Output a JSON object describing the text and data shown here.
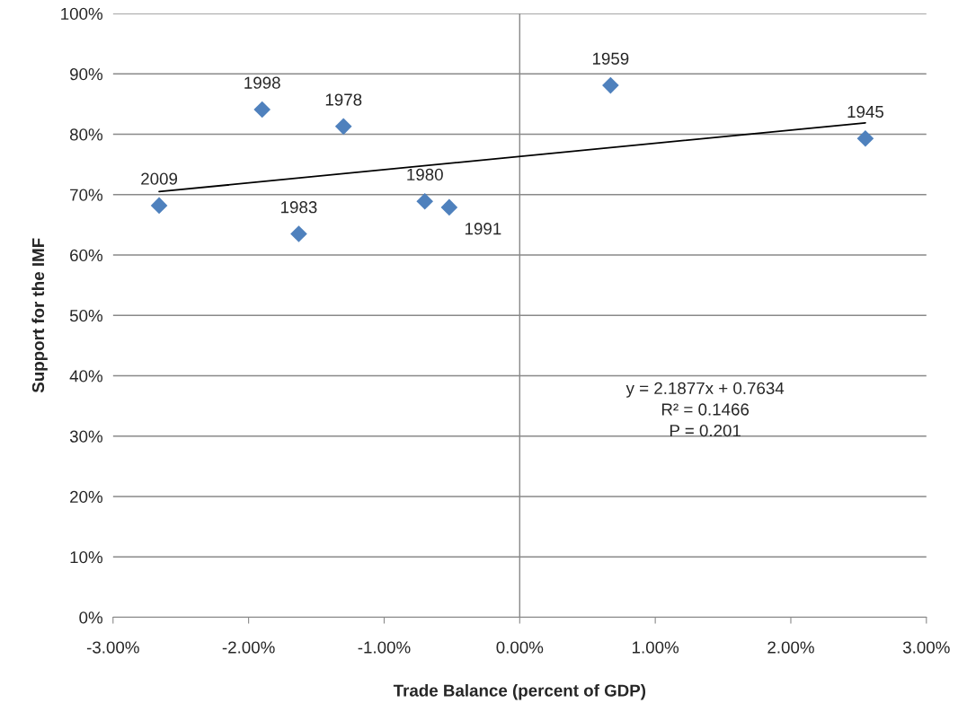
{
  "chart_data": {
    "type": "scatter",
    "xlabel": "Trade Balance (percent of GDP)",
    "ylabel": "Support for the IMF",
    "series": [
      {
        "color": "#4f81bd",
        "marker": "diamond",
        "x": [
          -2.66,
          -1.9,
          -1.3,
          -1.63,
          -0.7,
          -0.52,
          0.67,
          2.55
        ],
        "values": [
          68.2,
          84.1,
          81.3,
          63.5,
          68.9,
          67.9,
          88.1,
          79.3
        ]
      },
      {
        "type": "line",
        "color": "#000000",
        "marker": "none",
        "line_style": "solid",
        "x": [
          -2.66,
          2.55
        ],
        "values": [
          70.5,
          81.9
        ]
      }
    ],
    "annotations": [
      {
        "text": "2009",
        "x": -2.66,
        "y": 68.2
      },
      {
        "text": "1998",
        "x": -1.9,
        "y": 84.1
      },
      {
        "text": "1978",
        "x": -1.3,
        "y": 81.3
      },
      {
        "text": "1983",
        "x": -1.63,
        "y": 63.5
      },
      {
        "text": "1980",
        "x": -0.7,
        "y": 68.9
      },
      {
        "text": "1991",
        "x": -0.52,
        "y": 67.9
      },
      {
        "text": "1959",
        "x": 0.67,
        "y": 88.1
      },
      {
        "text": "1945",
        "x": 2.55,
        "y": 79.3
      },
      "y = 2.1877x + 0.7634\nR² = 0.1466\nP = 0.201"
    ],
    "xlim": [
      -3,
      3
    ],
    "xticks": [
      {
        "value": -3,
        "label": "-3.00%"
      },
      {
        "value": -2,
        "label": "-2.00%"
      },
      {
        "value": -1,
        "label": "-1.00%"
      },
      {
        "value": 0,
        "label": "0.00%"
      },
      {
        "value": 1,
        "label": "1.00%"
      },
      {
        "value": 2,
        "label": "2.00%"
      },
      {
        "value": 3,
        "label": "3.00%"
      }
    ],
    "ylim": [
      0,
      100
    ],
    "yticks": [
      {
        "value": 0,
        "label": "0%"
      },
      {
        "value": 10,
        "label": "10%"
      },
      {
        "value": 20,
        "label": "20%"
      },
      {
        "value": 30,
        "label": "30%"
      },
      {
        "value": 40,
        "label": "40%"
      },
      {
        "value": 50,
        "label": "50%"
      },
      {
        "value": 60,
        "label": "60%"
      },
      {
        "value": 70,
        "label": "70%"
      },
      {
        "value": 80,
        "label": "80%"
      },
      {
        "value": 90,
        "label": "90%"
      },
      {
        "value": 100,
        "label": "100%"
      }
    ],
    "ref_lines": [
      {
        "axis": "x",
        "value": 0,
        "color": "#898989"
      }
    ],
    "grid": "y",
    "legend": false
  }
}
